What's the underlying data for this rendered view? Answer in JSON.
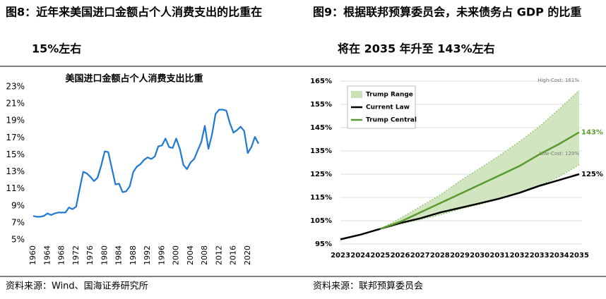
{
  "figures": [
    {
      "caption": [
        "图8：近年来美国进口金额占个人消费支出的比重在",
        "15%左右"
      ],
      "source": "资料来源：Wind、国海证券研究所"
    },
    {
      "caption": [
        "图9：根据联邦预算委员会，未来债务占 GDP 的比重",
        "将在 2035 年升至 143%左右"
      ],
      "source": "资料来源：联邦预算委员会"
    }
  ],
  "chart_data": [
    {
      "type": "line",
      "title": "美国进口金额占个人消费支出比重",
      "x": [
        1960,
        1961,
        1962,
        1963,
        1964,
        1965,
        1966,
        1967,
        1968,
        1969,
        1970,
        1971,
        1972,
        1973,
        1974,
        1975,
        1976,
        1977,
        1978,
        1979,
        1980,
        1981,
        1982,
        1983,
        1984,
        1985,
        1986,
        1987,
        1988,
        1989,
        1990,
        1991,
        1992,
        1993,
        1994,
        1995,
        1996,
        1997,
        1998,
        1999,
        2000,
        2001,
        2002,
        2003,
        2004,
        2005,
        2006,
        2007,
        2008,
        2009,
        2010,
        2011,
        2012,
        2013,
        2014,
        2015,
        2016,
        2017,
        2018,
        2019,
        2020,
        2021,
        2022,
        2023
      ],
      "series": [
        {
          "color": "#1f78d1",
          "values": [
            7.8,
            7.7,
            7.7,
            7.8,
            8.1,
            7.9,
            8.1,
            8.2,
            8.2,
            8.2,
            8.8,
            8.6,
            8.9,
            11.0,
            13.0,
            12.8,
            12.4,
            11.9,
            12.3,
            13.7,
            15.4,
            15.3,
            13.4,
            11.5,
            11.6,
            10.6,
            10.7,
            11.3,
            13.0,
            13.6,
            13.9,
            14.4,
            14.7,
            14.5,
            14.8,
            16.0,
            16.1,
            16.9,
            15.9,
            15.8,
            16.9,
            15.7,
            13.8,
            13.3,
            14.1,
            14.5,
            15.5,
            16.5,
            18.4,
            15.7,
            17.4,
            19.8,
            20.3,
            20.3,
            20.2,
            18.7,
            17.6,
            17.9,
            18.3,
            17.8,
            15.2,
            15.9,
            17.1,
            16.3
          ]
        }
      ],
      "xlim": [
        1960,
        2023
      ],
      "xticks": [
        1960,
        1964,
        1968,
        1972,
        1976,
        1980,
        1984,
        1988,
        1992,
        1996,
        2000,
        2004,
        2008,
        2012,
        2016,
        2020
      ],
      "ylim": [
        5,
        23
      ],
      "yticks": [
        {
          "value": 5,
          "label": "5%"
        },
        {
          "value": 7,
          "label": "7%"
        },
        {
          "value": 9,
          "label": "9%"
        },
        {
          "value": 11,
          "label": "11%"
        },
        {
          "value": 13,
          "label": "13%"
        },
        {
          "value": 15,
          "label": "15%"
        },
        {
          "value": 17,
          "label": "17%"
        },
        {
          "value": 19,
          "label": "19%"
        },
        {
          "value": 21,
          "label": "21%"
        },
        {
          "value": 23,
          "label": "23%"
        }
      ],
      "grid": false
    },
    {
      "type": "line",
      "x": [
        2023,
        2024,
        2025,
        2026,
        2027,
        2028,
        2029,
        2030,
        2031,
        2032,
        2033,
        2034,
        2035
      ],
      "series": [
        {
          "name": "Trump Range",
          "color": "#c9e2b5",
          "low": [
            null,
            null,
            101.5,
            103.5,
            105.5,
            107.5,
            110,
            112,
            114.5,
            117,
            120,
            124,
            129
          ],
          "high": [
            null,
            null,
            101.5,
            106,
            111,
            116,
            122,
            127.5,
            133,
            139,
            145.5,
            153,
            161
          ],
          "low_label": "Low-Cost: 129%",
          "high_label": "High-Cost: 161%"
        },
        {
          "name": "Current Law",
          "color": "#000000",
          "values": [
            97,
            99,
            101.5,
            104,
            106,
            108.5,
            110.5,
            112.5,
            114.5,
            117,
            120,
            122.5,
            125
          ],
          "value_labels": [
            null,
            null,
            null,
            null,
            null,
            null,
            null,
            null,
            null,
            null,
            null,
            null,
            "125%"
          ]
        },
        {
          "name": "Trump Central",
          "color": "#5a9a2c",
          "values": [
            null,
            null,
            101.5,
            104.5,
            108.5,
            112.5,
            116.5,
            120.5,
            124.5,
            128.5,
            133.5,
            138,
            143
          ],
          "value_labels": [
            null,
            null,
            null,
            null,
            null,
            null,
            null,
            null,
            null,
            null,
            null,
            null,
            "143%"
          ]
        }
      ],
      "xlim": [
        2023,
        2035
      ],
      "xticks": [
        2023,
        2024,
        2025,
        2026,
        2027,
        2028,
        2029,
        2030,
        2031,
        2032,
        2033,
        2034,
        2035
      ],
      "ylim": [
        95,
        165
      ],
      "yticks": [
        {
          "value": 95,
          "label": "95%"
        },
        {
          "value": 105,
          "label": "105%"
        },
        {
          "value": 115,
          "label": "115%"
        },
        {
          "value": 125,
          "label": "125%"
        },
        {
          "value": 135,
          "label": "135%"
        },
        {
          "value": 145,
          "label": "145%"
        },
        {
          "value": 155,
          "label": "155%"
        },
        {
          "value": 165,
          "label": "165%"
        }
      ],
      "grid": true,
      "legend": "upper left"
    }
  ]
}
